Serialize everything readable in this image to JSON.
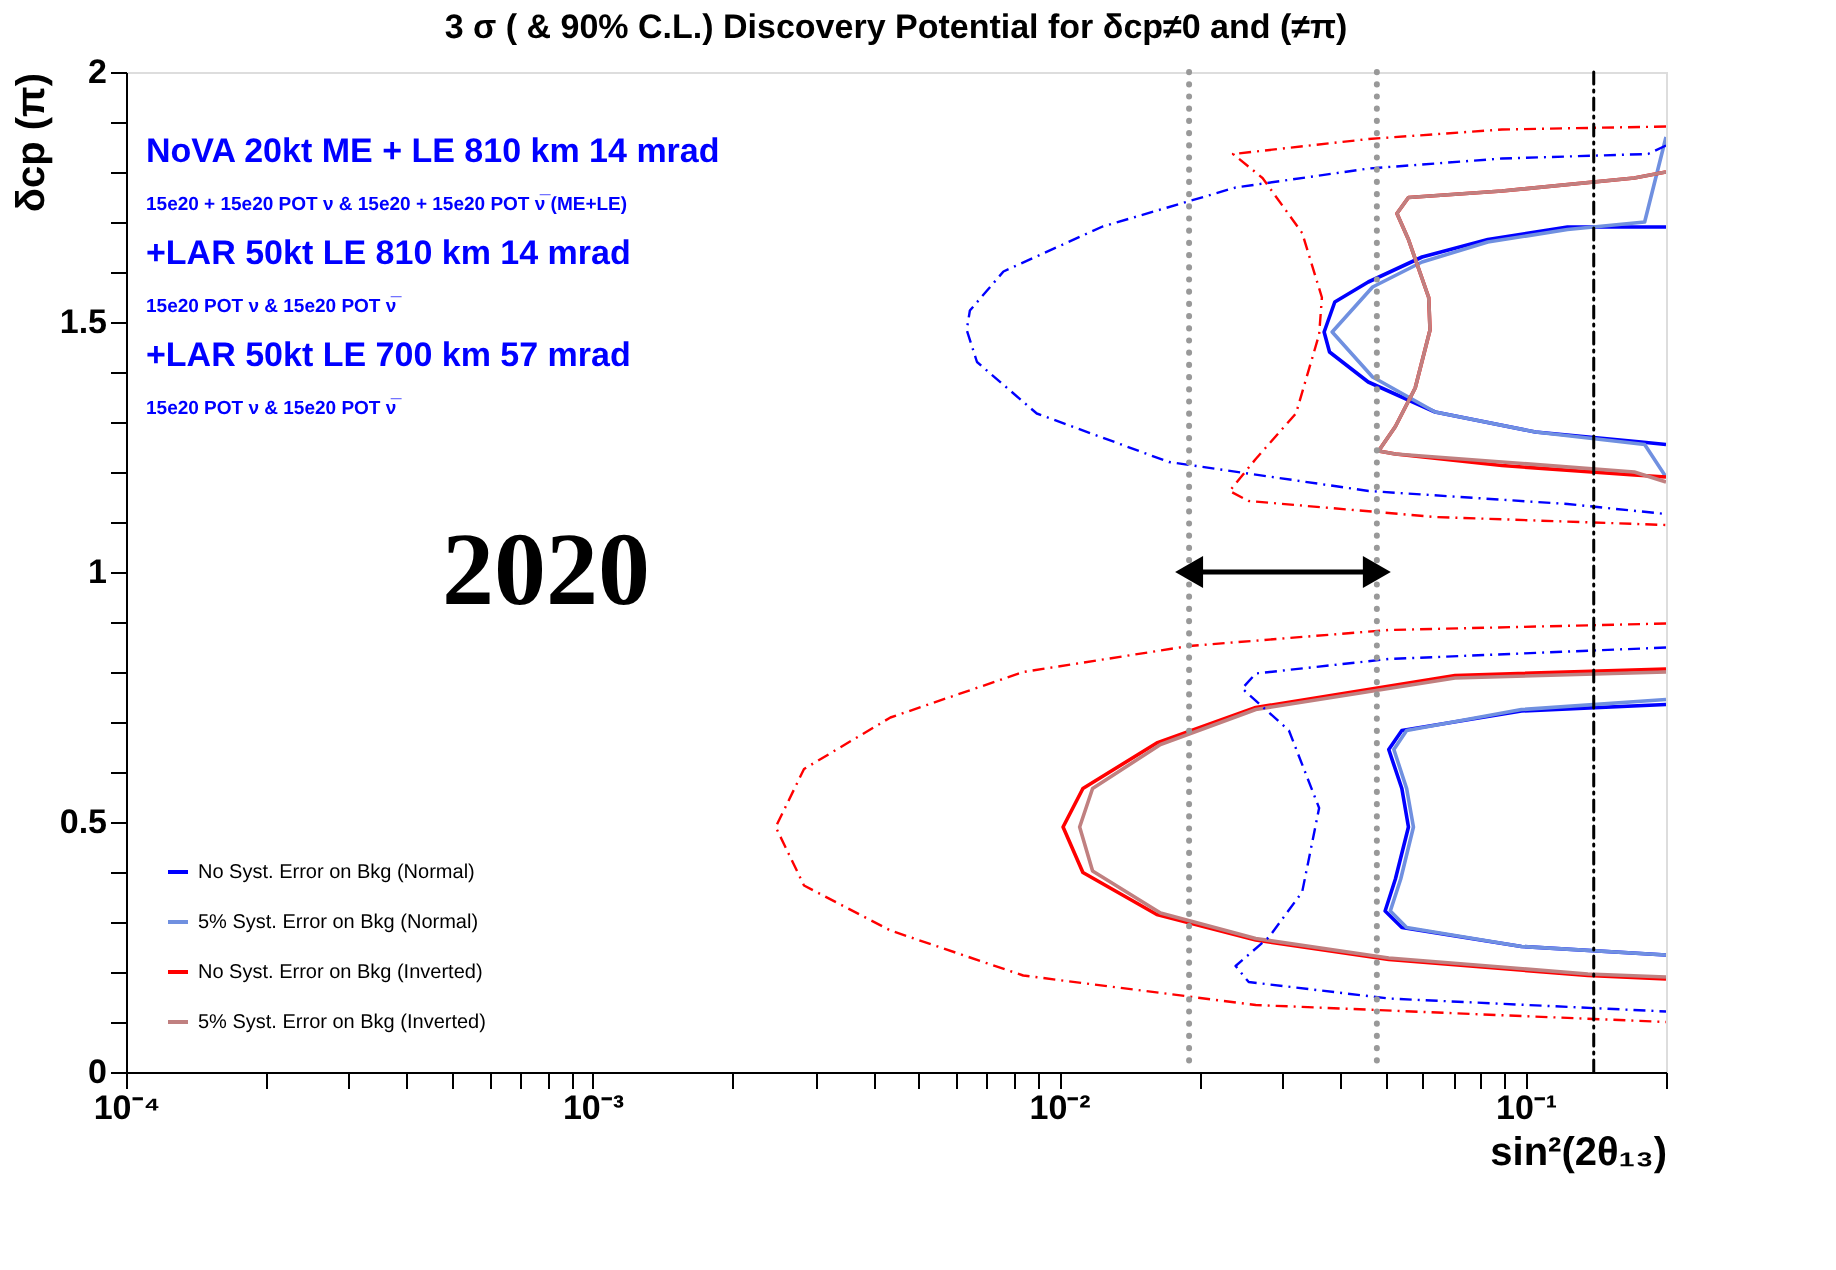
{
  "chart_data": {
    "type": "line",
    "title": "3 σ ( & 90% C.L.) Discovery Potential for δcp≠0 and (≠π)",
    "xlabel": "sin²(2θ₁₃)",
    "ylabel": "δcp (π)",
    "log": "x",
    "xlim": [
      0.0001,
      0.2
    ],
    "ylim": [
      0,
      2
    ],
    "grid": false,
    "legend": "bottom left",
    "marker": "none",
    "xticks": [
      {
        "value": 0.0001,
        "label": "10⁻⁴"
      },
      {
        "value": 0.0002,
        "label": null
      },
      {
        "value": 0.0003,
        "label": null
      },
      {
        "value": 0.0004,
        "label": null
      },
      {
        "value": 0.0005,
        "label": null
      },
      {
        "value": 0.0006,
        "label": null
      },
      {
        "value": 0.0007,
        "label": null
      },
      {
        "value": 0.0008,
        "label": null
      },
      {
        "value": 0.0009,
        "label": null
      },
      {
        "value": 0.001,
        "label": "10⁻³"
      },
      {
        "value": 0.002,
        "label": null
      },
      {
        "value": 0.003,
        "label": null
      },
      {
        "value": 0.004,
        "label": null
      },
      {
        "value": 0.005,
        "label": null
      },
      {
        "value": 0.006,
        "label": null
      },
      {
        "value": 0.007,
        "label": null
      },
      {
        "value": 0.008,
        "label": null
      },
      {
        "value": 0.009,
        "label": null
      },
      {
        "value": 0.01,
        "label": "10⁻²"
      },
      {
        "value": 0.02,
        "label": null
      },
      {
        "value": 0.03,
        "label": null
      },
      {
        "value": 0.04,
        "label": null
      },
      {
        "value": 0.05,
        "label": null
      },
      {
        "value": 0.06,
        "label": null
      },
      {
        "value": 0.07,
        "label": null
      },
      {
        "value": 0.08,
        "label": null
      },
      {
        "value": 0.09,
        "label": null
      },
      {
        "value": 0.1,
        "label": "10⁻¹"
      },
      {
        "value": 0.2,
        "label": null
      }
    ],
    "yticks": [
      0,
      {
        "value": 0.1,
        "label": null
      },
      {
        "value": 0.2,
        "label": null
      },
      {
        "value": 0.3,
        "label": null
      },
      {
        "value": 0.4,
        "label": null
      },
      0.5,
      {
        "value": 0.6,
        "label": null
      },
      {
        "value": 0.7,
        "label": null
      },
      {
        "value": 0.8,
        "label": null
      },
      {
        "value": 0.9,
        "label": null
      },
      1,
      {
        "value": 1.1,
        "label": null
      },
      {
        "value": 1.2,
        "label": null
      },
      {
        "value": 1.3,
        "label": null
      },
      {
        "value": 1.4,
        "label": null
      },
      1.5,
      {
        "value": 1.6,
        "label": null
      },
      {
        "value": 1.7,
        "label": null
      },
      {
        "value": 1.8,
        "label": null
      },
      {
        "value": 1.9,
        "label": null
      },
      2
    ],
    "ref_lines": [
      {
        "axis": "x",
        "value": 0.019,
        "color": "#999999",
        "line_style": "dotted"
      },
      {
        "axis": "x",
        "value": 0.048,
        "color": "#999999",
        "line_style": "dotted"
      },
      {
        "axis": "x",
        "value": 0.14,
        "color": "#000000",
        "line_style": "dashed"
      }
    ],
    "annotations": [
      "NoVA 20kt  ME + LE 810 km 14 mrad",
      "15e20 + 15e20 POT ν & 15e20 + 15e20 POT ν̅ (ME+LE)",
      "+LAR 50kt LE 810 km 14 mrad",
      "15e20 POT ν & 15e20 POT ν̅",
      "+LAR 50kt  LE 700 km 57 mrad",
      "15e20 POT ν & 15e20 POT ν̅",
      "2020"
    ],
    "series": [
      {
        "name": "No Syst. Error on Bkg (Normal)",
        "color": "#0000ff",
        "line_style": "solid",
        "x": [
          0.2,
          0.123,
          0.083,
          0.06,
          0.046,
          0.039,
          0.037,
          0.038,
          0.046,
          0.064,
          0.105,
          0.177,
          0.2,
          null,
          0.2,
          0.098,
          0.0543,
          0.0509,
          0.0543,
          0.0561,
          0.0526,
          0.05,
          0.0543,
          0.098,
          0.2
        ],
        "values": [
          1.69,
          1.69,
          1.665,
          1.63,
          1.58,
          1.54,
          1.48,
          1.44,
          1.38,
          1.32,
          1.28,
          1.26,
          1.255,
          null,
          0.735,
          0.722,
          0.683,
          0.645,
          0.567,
          0.49,
          0.386,
          0.322,
          0.289,
          0.251,
          0.234
        ]
      },
      {
        "name": "5% Syst. Error on Bkg (Normal)",
        "color": "#7090e0",
        "line_style": "solid",
        "x": [
          0.2,
          0.18,
          0.123,
          0.083,
          0.06,
          0.047,
          0.0385,
          0.047,
          0.064,
          0.105,
          0.18,
          0.2,
          null,
          0.2,
          0.098,
          0.0556,
          0.0522,
          0.0556,
          0.0575,
          0.054,
          0.0513,
          0.0556,
          0.098,
          0.2
        ],
        "values": [
          1.87,
          1.7,
          1.685,
          1.66,
          1.62,
          1.57,
          1.48,
          1.39,
          1.32,
          1.28,
          1.255,
          1.19,
          null,
          0.745,
          0.725,
          0.683,
          0.645,
          0.567,
          0.49,
          0.386,
          0.322,
          0.289,
          0.251,
          0.234
        ]
      },
      {
        "name": "No Syst. Error on Bkg (Inverted)",
        "color": "#ff0000",
        "line_style": "solid",
        "x": [
          0.2,
          0.171,
          0.089,
          0.0561,
          0.053,
          0.0561,
          0.062,
          0.0624,
          0.058,
          0.0526,
          0.0484,
          0.0526,
          0.089,
          0.171,
          0.2,
          null,
          0.2,
          0.0706,
          0.0264,
          0.0162,
          0.01125,
          0.0102,
          0.01125,
          0.0162,
          0.0264,
          0.0509,
          0.136,
          0.2
        ],
        "values": [
          1.8,
          1.788,
          1.762,
          1.749,
          1.717,
          1.665,
          1.549,
          1.484,
          1.368,
          1.291,
          1.242,
          1.236,
          1.213,
          1.194,
          1.19,
          null,
          0.806,
          0.793,
          0.729,
          0.658,
          0.567,
          0.49,
          0.399,
          0.315,
          0.264,
          0.225,
          0.193,
          0.186
        ]
      },
      {
        "name": "5% Syst. Error on Bkg (Inverted)",
        "color": "#c08080",
        "line_style": "solid",
        "x": [
          0.2,
          0.171,
          0.089,
          0.0561,
          0.053,
          0.0561,
          0.062,
          0.0624,
          0.058,
          0.0526,
          0.0484,
          0.0526,
          0.089,
          0.171,
          0.2,
          null,
          0.2,
          0.0706,
          0.0264,
          0.0165,
          0.0118,
          0.01107,
          0.0118,
          0.0165,
          0.0264,
          0.0509,
          0.136,
          0.2
        ],
        "values": [
          1.8,
          1.788,
          1.762,
          1.749,
          1.717,
          1.665,
          1.549,
          1.484,
          1.368,
          1.291,
          1.242,
          1.236,
          1.22,
          1.2,
          1.18,
          null,
          0.8,
          0.788,
          0.725,
          0.655,
          0.567,
          0.49,
          0.402,
          0.318,
          0.267,
          0.228,
          0.196,
          0.19
        ]
      },
      {
        "color": "#0000ff",
        "line_style": "dashed",
        "x": [
          0.2,
          0.183,
          0.089,
          0.0461,
          0.0239,
          0.0124,
          0.0076,
          0.00644,
          0.00634,
          0.00667,
          0.00896,
          0.0172,
          0.0461,
          0.123,
          0.2,
          null,
          0.2,
          0.0509,
          0.0264,
          0.0247,
          0.0311,
          0.0361,
          0.0332,
          0.0282,
          0.0239,
          0.0255,
          0.0509,
          0.2
        ],
        "values": [
          1.853,
          1.836,
          1.827,
          1.807,
          1.769,
          1.691,
          1.601,
          1.523,
          1.484,
          1.42,
          1.317,
          1.22,
          1.162,
          1.136,
          1.116,
          null,
          0.849,
          0.826,
          0.797,
          0.767,
          0.683,
          0.528,
          0.36,
          0.27,
          0.212,
          0.18,
          0.147,
          0.121
        ]
      },
      {
        "color": "#ff0000",
        "line_style": "dashed",
        "x": [
          0.2,
          0.089,
          0.0461,
          0.0236,
          0.0273,
          0.0332,
          0.0366,
          0.0361,
          0.0322,
          0.0264,
          0.0232,
          0.0255,
          0.064,
          0.2,
          null,
          0.2,
          0.0509,
          0.019,
          0.00838,
          0.00435,
          0.00284,
          0.00247,
          0.00284,
          0.00435,
          0.00838,
          0.0264,
          0.2
        ],
        "values": [
          1.891,
          1.885,
          1.866,
          1.836,
          1.788,
          1.678,
          1.549,
          1.475,
          1.317,
          1.226,
          1.162,
          1.142,
          1.11,
          1.094,
          null,
          0.897,
          0.884,
          0.852,
          0.8,
          0.709,
          0.606,
          0.49,
          0.373,
          0.283,
          0.193,
          0.134,
          0.1
        ]
      }
    ]
  }
}
